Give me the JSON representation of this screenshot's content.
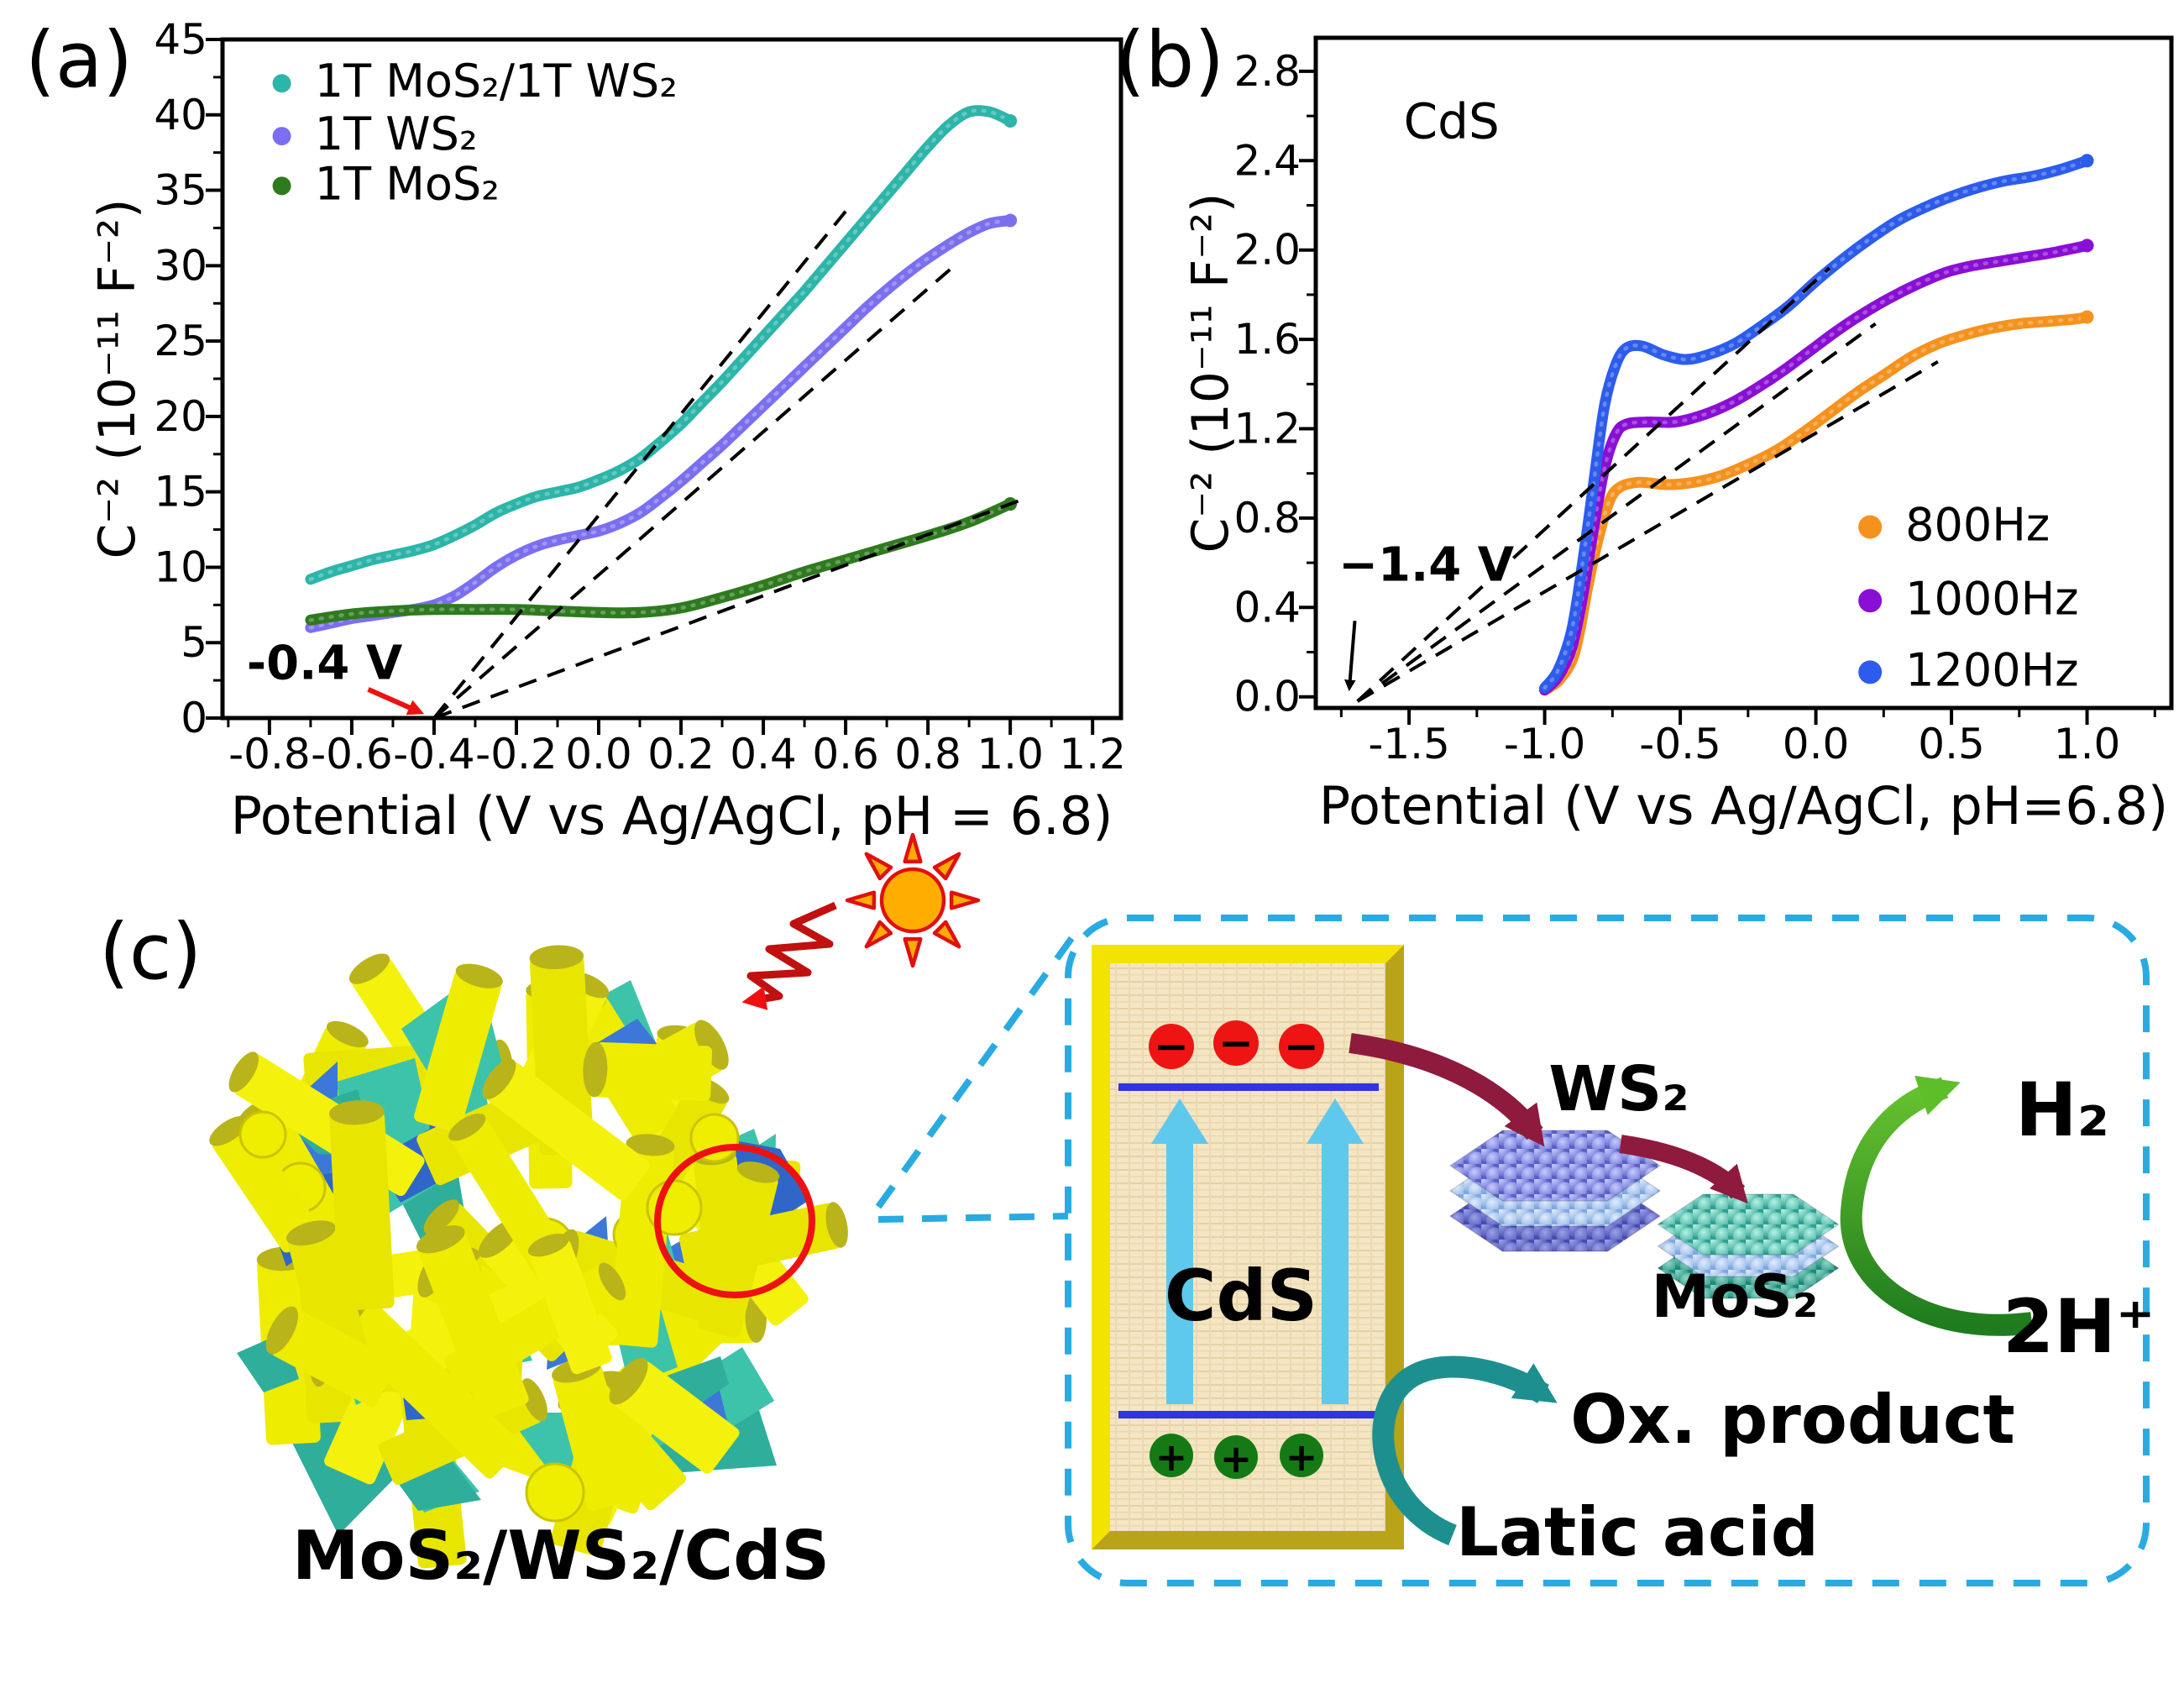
{
  "figure": {
    "panel_a_label": "(a)",
    "panel_b_label": "(b)",
    "panel_c_label": "(c)"
  },
  "colors": {
    "dashed_callout": "#29abe2",
    "guide_dash": "#000000",
    "electron": "#ee1414",
    "hole": "#157a15",
    "band_line": "#3232e8",
    "cds_text": "#c2691e",
    "ws2_label": "#7b3fc4",
    "mos2_label": "#1fa99a",
    "maroon_arrow": "#8e1a3d",
    "teal_arrow": "#1e8f8f",
    "green_arrow_dark": "#1e7c1e",
    "green_arrow_light": "#66c22e",
    "sun_fill": "#ffad00",
    "sun_stroke": "#e01010",
    "rod_yellow": "#f0ee0a",
    "flake_teal": "#3ec3ab",
    "flake_blue": "#3b78d8",
    "red_annotation": "#ee1111"
  },
  "chart_data": [
    {
      "id": "a",
      "type": "scatter",
      "panel_label": "(a)",
      "xlabel": "Potential (V vs Ag/AgCl, pH = 6.8)",
      "ylabel": "C⁻² (10⁻¹¹ F⁻²)",
      "xlim": [
        -0.914,
        1.269
      ],
      "ylim": [
        0,
        45
      ],
      "xticks": [
        -0.8,
        -0.6,
        -0.4,
        -0.2,
        0.0,
        0.2,
        0.4,
        0.6,
        0.8,
        1.0,
        1.2
      ],
      "xtick_labels": [
        "-0.8",
        "-0.6",
        "-0.4",
        "-0.2",
        "0.0",
        "0.2",
        "0.4",
        "0.6",
        "0.8",
        "1.0",
        "1.2"
      ],
      "yticks": [
        0,
        5,
        10,
        15,
        20,
        25,
        30,
        35,
        40,
        45
      ],
      "ytick_labels": [
        "0",
        "5",
        "10",
        "15",
        "20",
        "25",
        "30",
        "35",
        "40",
        "45"
      ],
      "xminor": 0.1,
      "yminor": 2.5,
      "grid": false,
      "legend_position": "upper-left-inside",
      "series": [
        {
          "name": "1T MoS₂/1T WS₂",
          "color": "#2cb5a8",
          "points": [
            [
              -0.7,
              9.2
            ],
            [
              -0.65,
              9.7
            ],
            [
              -0.6,
              10.1
            ],
            [
              -0.55,
              10.5
            ],
            [
              -0.5,
              10.8
            ],
            [
              -0.45,
              11.1
            ],
            [
              -0.4,
              11.5
            ],
            [
              -0.35,
              12.1
            ],
            [
              -0.3,
              12.8
            ],
            [
              -0.25,
              13.6
            ],
            [
              -0.2,
              14.2
            ],
            [
              -0.15,
              14.7
            ],
            [
              -0.1,
              15.0
            ],
            [
              -0.05,
              15.3
            ],
            [
              0.0,
              15.8
            ],
            [
              0.05,
              16.4
            ],
            [
              0.1,
              17.2
            ],
            [
              0.15,
              18.3
            ],
            [
              0.2,
              19.5
            ],
            [
              0.25,
              20.9
            ],
            [
              0.3,
              22.3
            ],
            [
              0.35,
              23.8
            ],
            [
              0.4,
              25.3
            ],
            [
              0.45,
              26.8
            ],
            [
              0.5,
              28.3
            ],
            [
              0.55,
              29.9
            ],
            [
              0.6,
              31.5
            ],
            [
              0.65,
              33.1
            ],
            [
              0.7,
              34.7
            ],
            [
              0.75,
              36.3
            ],
            [
              0.8,
              37.9
            ],
            [
              0.85,
              39.3
            ],
            [
              0.9,
              40.2
            ],
            [
              0.95,
              40.2
            ],
            [
              1.0,
              39.6
            ]
          ]
        },
        {
          "name": "1T WS₂",
          "color": "#7b6ff0",
          "points": [
            [
              -0.7,
              6.0
            ],
            [
              -0.65,
              6.3
            ],
            [
              -0.6,
              6.6
            ],
            [
              -0.55,
              6.8
            ],
            [
              -0.5,
              7.0
            ],
            [
              -0.45,
              7.2
            ],
            [
              -0.4,
              7.5
            ],
            [
              -0.35,
              8.1
            ],
            [
              -0.3,
              9.0
            ],
            [
              -0.25,
              10.0
            ],
            [
              -0.2,
              10.8
            ],
            [
              -0.15,
              11.4
            ],
            [
              -0.1,
              11.8
            ],
            [
              -0.05,
              12.1
            ],
            [
              0.0,
              12.4
            ],
            [
              0.05,
              12.9
            ],
            [
              0.1,
              13.6
            ],
            [
              0.15,
              14.6
            ],
            [
              0.2,
              15.7
            ],
            [
              0.25,
              16.9
            ],
            [
              0.3,
              18.1
            ],
            [
              0.35,
              19.4
            ],
            [
              0.4,
              20.7
            ],
            [
              0.45,
              22.0
            ],
            [
              0.5,
              23.3
            ],
            [
              0.55,
              24.6
            ],
            [
              0.6,
              25.9
            ],
            [
              0.65,
              27.2
            ],
            [
              0.7,
              28.4
            ],
            [
              0.75,
              29.5
            ],
            [
              0.8,
              30.5
            ],
            [
              0.85,
              31.4
            ],
            [
              0.9,
              32.2
            ],
            [
              0.95,
              32.8
            ],
            [
              1.0,
              33.0
            ]
          ]
        },
        {
          "name": "1T MoS₂",
          "color": "#2f7a1f",
          "points": [
            [
              -0.7,
              6.5
            ],
            [
              -0.6,
              6.9
            ],
            [
              -0.5,
              7.1
            ],
            [
              -0.4,
              7.2
            ],
            [
              -0.3,
              7.2
            ],
            [
              -0.2,
              7.2
            ],
            [
              -0.1,
              7.1
            ],
            [
              0.0,
              7.0
            ],
            [
              0.1,
              7.0
            ],
            [
              0.2,
              7.3
            ],
            [
              0.3,
              8.0
            ],
            [
              0.4,
              8.8
            ],
            [
              0.5,
              9.7
            ],
            [
              0.6,
              10.5
            ],
            [
              0.7,
              11.3
            ],
            [
              0.8,
              12.1
            ],
            [
              0.9,
              13.0
            ],
            [
              1.0,
              14.2
            ]
          ]
        }
      ],
      "guides": {
        "origin": [
          -0.4,
          0
        ],
        "ends": [
          [
            0.6,
            33.6
          ],
          [
            0.86,
            29.9
          ],
          [
            1.04,
            14.6
          ]
        ]
      },
      "annotation": {
        "text": "-0.4 V",
        "color": "#ee1111",
        "x": -0.855,
        "y": 2.6,
        "arrow_from": [
          -0.56,
          1.9
        ],
        "arrow_to": [
          -0.435,
          0.4
        ]
      },
      "legend": {
        "dot_x": -0.77,
        "text_x": -0.69,
        "ys": [
          41.2,
          37.7,
          34.4
        ]
      }
    },
    {
      "id": "b",
      "type": "scatter",
      "panel_label": "(b)",
      "title_inside": {
        "text": "CdS",
        "x": -1.52,
        "y": 2.5
      },
      "xlabel": "Potential (V vs Ag/AgCl, pH=6.8)",
      "ylabel": "C⁻² (10⁻¹¹ F⁻²)",
      "xlim": [
        -1.844,
        1.311
      ],
      "ylim": [
        -0.05,
        2.95
      ],
      "xticks": [
        -1.5,
        -1.0,
        -0.5,
        0.0,
        0.5,
        1.0
      ],
      "xtick_labels": [
        "-1.5",
        "-1.0",
        "-0.5",
        "0.0",
        "0.5",
        "1.0"
      ],
      "yticks": [
        0.0,
        0.4,
        0.8,
        1.2,
        1.6,
        2.0,
        2.4,
        2.8
      ],
      "ytick_labels": [
        "0.0",
        "0.4",
        "0.8",
        "1.2",
        "1.6",
        "2.0",
        "2.4",
        "2.8"
      ],
      "xminor": 0.25,
      "yminor": 0.2,
      "grid": false,
      "legend_position": "right-middle-inside",
      "series": [
        {
          "name": "800Hz",
          "color": "#f5921e",
          "points": [
            [
              -1.0,
              0.03
            ],
            [
              -0.95,
              0.07
            ],
            [
              -0.9,
              0.16
            ],
            [
              -0.87,
              0.3
            ],
            [
              -0.84,
              0.5
            ],
            [
              -0.8,
              0.72
            ],
            [
              -0.76,
              0.88
            ],
            [
              -0.72,
              0.94
            ],
            [
              -0.65,
              0.96
            ],
            [
              -0.55,
              0.95
            ],
            [
              -0.45,
              0.96
            ],
            [
              -0.35,
              0.99
            ],
            [
              -0.25,
              1.04
            ],
            [
              -0.15,
              1.1
            ],
            [
              -0.05,
              1.18
            ],
            [
              0.05,
              1.27
            ],
            [
              0.15,
              1.36
            ],
            [
              0.25,
              1.44
            ],
            [
              0.35,
              1.52
            ],
            [
              0.45,
              1.58
            ],
            [
              0.55,
              1.62
            ],
            [
              0.65,
              1.65
            ],
            [
              0.75,
              1.67
            ],
            [
              0.85,
              1.68
            ],
            [
              0.95,
              1.69
            ],
            [
              1.0,
              1.7
            ]
          ]
        },
        {
          "name": "1000Hz",
          "color": "#8a0fd4",
          "points": [
            [
              -1.0,
              0.03
            ],
            [
              -0.95,
              0.09
            ],
            [
              -0.9,
              0.22
            ],
            [
              -0.86,
              0.45
            ],
            [
              -0.82,
              0.75
            ],
            [
              -0.78,
              1.02
            ],
            [
              -0.74,
              1.17
            ],
            [
              -0.7,
              1.22
            ],
            [
              -0.62,
              1.23
            ],
            [
              -0.52,
              1.23
            ],
            [
              -0.42,
              1.26
            ],
            [
              -0.32,
              1.31
            ],
            [
              -0.22,
              1.38
            ],
            [
              -0.12,
              1.46
            ],
            [
              -0.02,
              1.55
            ],
            [
              0.08,
              1.64
            ],
            [
              0.18,
              1.72
            ],
            [
              0.28,
              1.79
            ],
            [
              0.38,
              1.85
            ],
            [
              0.48,
              1.9
            ],
            [
              0.58,
              1.93
            ],
            [
              0.68,
              1.95
            ],
            [
              0.78,
              1.97
            ],
            [
              0.88,
              1.99
            ],
            [
              1.0,
              2.02
            ]
          ]
        },
        {
          "name": "1200Hz",
          "color": "#2d5cec",
          "points": [
            [
              -1.0,
              0.04
            ],
            [
              -0.95,
              0.12
            ],
            [
              -0.9,
              0.3
            ],
            [
              -0.86,
              0.6
            ],
            [
              -0.82,
              0.95
            ],
            [
              -0.78,
              1.3
            ],
            [
              -0.74,
              1.48
            ],
            [
              -0.7,
              1.56
            ],
            [
              -0.64,
              1.57
            ],
            [
              -0.56,
              1.53
            ],
            [
              -0.48,
              1.51
            ],
            [
              -0.4,
              1.53
            ],
            [
              -0.3,
              1.58
            ],
            [
              -0.2,
              1.66
            ],
            [
              -0.1,
              1.75
            ],
            [
              0.0,
              1.86
            ],
            [
              0.1,
              1.96
            ],
            [
              0.2,
              2.05
            ],
            [
              0.3,
              2.13
            ],
            [
              0.4,
              2.19
            ],
            [
              0.5,
              2.24
            ],
            [
              0.6,
              2.28
            ],
            [
              0.7,
              2.31
            ],
            [
              0.8,
              2.33
            ],
            [
              0.9,
              2.36
            ],
            [
              1.0,
              2.4
            ]
          ]
        }
      ],
      "guides": {
        "origin": [
          -1.69,
          -0.02
        ],
        "ends": [
          [
            0.05,
            1.92
          ],
          [
            0.22,
            1.67
          ],
          [
            0.45,
            1.5
          ]
        ]
      },
      "annotation": {
        "text": "−1.4 V",
        "color": "#000000",
        "x": -1.76,
        "y": 0.52,
        "arrow_from": [
          -1.7,
          0.34
        ],
        "arrow_to": [
          -1.72,
          0.04
        ]
      },
      "legend": {
        "dot_x": 0.2,
        "text_x": 0.33,
        "ys": [
          0.7,
          0.37,
          0.05
        ]
      }
    }
  ],
  "panel_c": {
    "label": "(c)",
    "band_material": "CdS",
    "ws2": "WS₂",
    "mos2": "MoS₂",
    "h2": "H₂",
    "protons": "2H⁺",
    "ox_product": "Ox. product",
    "lactic_acid": "Latic acid",
    "composite": "MoS₂/WS₂/CdS",
    "electron_symbol": "−",
    "hole_symbol": "+"
  }
}
